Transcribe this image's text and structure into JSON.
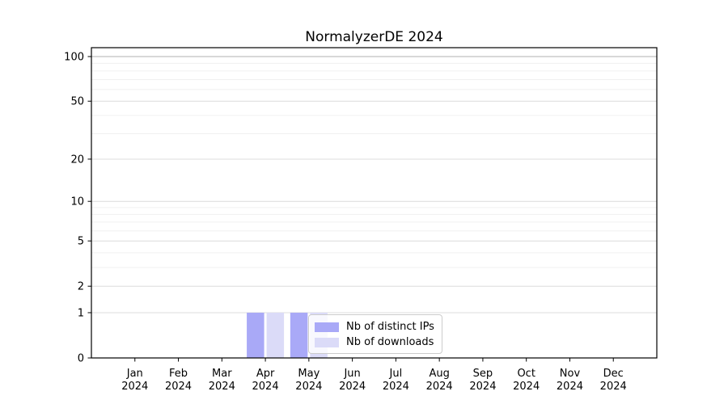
{
  "chart_data": {
    "type": "bar",
    "title": "NormalyzerDE 2024",
    "categories": [
      "Jan 2024",
      "Feb 2024",
      "Mar 2024",
      "Apr 2024",
      "May 2024",
      "Jun 2024",
      "Jul 2024",
      "Aug 2024",
      "Sep 2024",
      "Oct 2024",
      "Nov 2024",
      "Dec 2024"
    ],
    "series": [
      {
        "name": "Nb of distinct IPs",
        "color": "#a9a9f7",
        "values": [
          0,
          0,
          0,
          1,
          1,
          0,
          0,
          0,
          0,
          0,
          0,
          0
        ]
      },
      {
        "name": "Nb of downloads",
        "color": "#dbdbf8",
        "values": [
          0,
          0,
          0,
          1,
          1,
          0,
          0,
          0,
          0,
          0,
          0,
          0
        ]
      }
    ],
    "xlabel": "",
    "ylabel": "",
    "y_scale": "log1p",
    "y_ticks": [
      0,
      1,
      2,
      5,
      10,
      20,
      50,
      100
    ],
    "y_minor_gridlines": [
      3,
      4,
      6,
      7,
      8,
      9,
      30,
      40,
      60,
      70,
      80,
      90
    ],
    "ylim": [
      0,
      115
    ],
    "grid": "horizontal",
    "legend_position": "inside-lower-center"
  },
  "colors": {
    "background": "#ffffff",
    "axis": "#000000",
    "grid_minor": "#f0f0f0",
    "grid_major": "#dcdcdc",
    "grid_emphasis": "#b0b0b0",
    "legend_border": "#cccccc"
  }
}
